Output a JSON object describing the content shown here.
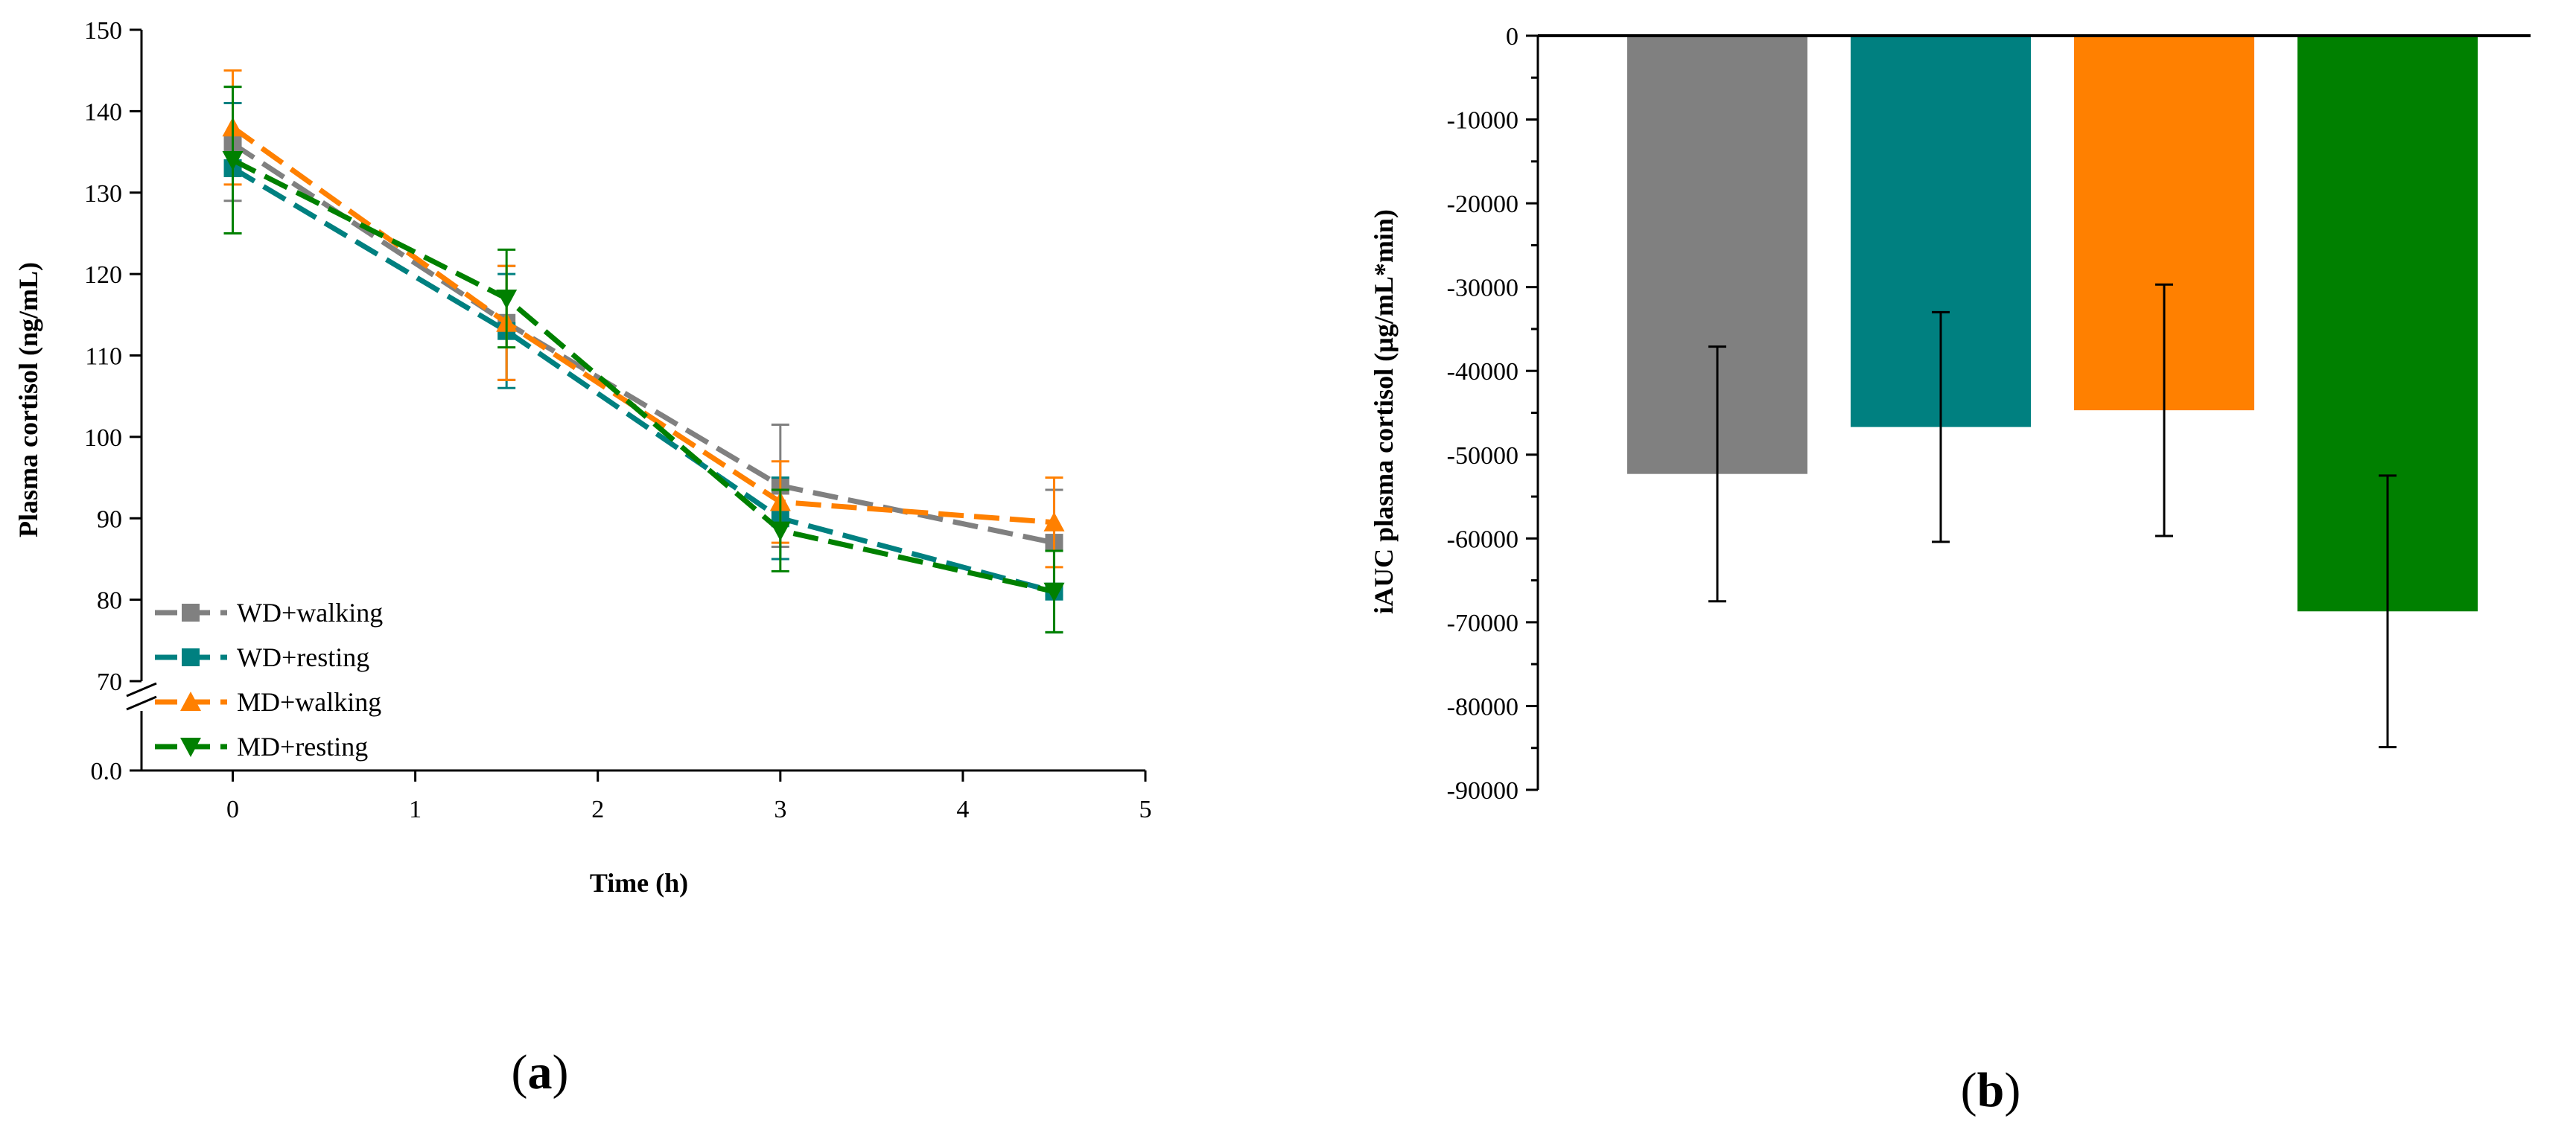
{
  "colors": {
    "WD_walking": "#808080",
    "WD_resting": "#008080",
    "MD_walking": "#ff8000",
    "MD_resting": "#008000"
  },
  "chart_data": [
    {
      "type": "line",
      "panel_label": "a",
      "xlabel": "Time (h)",
      "ylabel": "Plasma cortisol (ng/mL)",
      "xlim": [
        -0.5,
        5
      ],
      "x_ticks": [
        "0",
        "1",
        "2",
        "3",
        "4",
        "5"
      ],
      "y_ticks_upper": [
        "150",
        "140",
        "130",
        "120",
        "110",
        "100",
        "90",
        "80",
        "70"
      ],
      "y_tick_lower": "0.0",
      "ylim": [
        70,
        150
      ],
      "y_axis_break": true,
      "legend_position": "bottom-left",
      "x": [
        0,
        1.5,
        3,
        4.5
      ],
      "series": [
        {
          "name": "WD+walking",
          "marker": "square",
          "values": [
            136,
            114,
            94,
            87
          ],
          "errors": [
            7,
            7,
            7.5,
            6.5
          ]
        },
        {
          "name": "WD+resting",
          "marker": "square",
          "values": [
            133,
            113,
            90,
            81
          ],
          "errors": [
            8,
            7,
            5,
            5
          ]
        },
        {
          "name": "MD+walking",
          "marker": "triangle-up",
          "values": [
            138,
            114,
            92,
            89.5
          ],
          "errors": [
            7,
            7,
            5,
            5.5
          ]
        },
        {
          "name": "MD+resting",
          "marker": "triangle-down",
          "values": [
            134,
            117,
            88.5,
            81
          ],
          "errors": [
            9,
            6,
            5,
            5
          ]
        }
      ]
    },
    {
      "type": "bar",
      "panel_label": "b",
      "xlabel": "",
      "ylabel": "iAUC plasma cortisol (µg/mL*min)",
      "ylim": [
        -90000,
        0
      ],
      "y_ticks": [
        "0",
        "-10000",
        "-20000",
        "-30000",
        "-40000",
        "-50000",
        "-60000",
        "-70000",
        "-80000",
        "-90000"
      ],
      "categories": [
        "WD+walking",
        "WD+resting",
        "MD+walking",
        "MD+resting"
      ],
      "values": [
        -52300,
        -46700,
        -44700,
        -68700
      ],
      "errors": [
        15200,
        13700,
        15000,
        16200
      ]
    }
  ]
}
